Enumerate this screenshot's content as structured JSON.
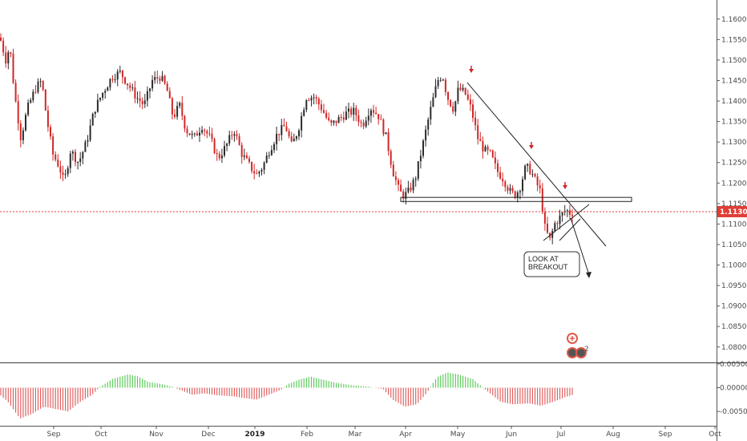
{
  "chart_data": {
    "type": "candlestick",
    "price_axis": {
      "ticks": [
        "1.16000",
        "1.15500",
        "1.15000",
        "1.14500",
        "1.14000",
        "1.13500",
        "1.13000",
        "1.12500",
        "1.12000",
        "1.11500",
        "1.11000",
        "1.10500",
        "1.10000",
        "1.09500",
        "1.09000",
        "1.08500",
        "1.08000"
      ],
      "ylim": [
        1.078,
        1.1625
      ]
    },
    "time_axis": {
      "labels": [
        "Sep",
        "Oct",
        "Nov",
        "Dec",
        "2019",
        "Feb",
        "Mar",
        "Apr",
        "May",
        "Jun",
        "Jul",
        "Aug",
        "Sep",
        "Oct"
      ]
    },
    "current_price": {
      "value": 1.11302,
      "label": "1.11302",
      "color": "#e03e36"
    },
    "support_zone": {
      "low": 1.1155,
      "high": 1.1165
    },
    "annotation_text": [
      "LOOK AT",
      "BREAKOUT"
    ],
    "trendline_start": 1.1445,
    "arrow_markers": 3,
    "oscillator": {
      "ticks": [
        "0.00500",
        "0.00000",
        "-0.00500"
      ],
      "ylim": [
        -0.0075,
        0.0048
      ]
    },
    "badge_count": "2",
    "colors": {
      "up": "#2b2b2b",
      "down": "#d12727",
      "osc_up": "#5ecb5e",
      "osc_down": "#e06060"
    }
  }
}
